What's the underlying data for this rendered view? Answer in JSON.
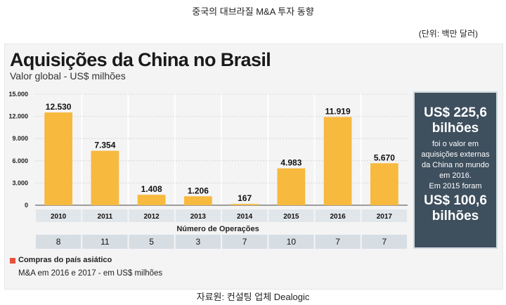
{
  "header": {
    "title": "중국의 대브라질 M&A 투자 동향",
    "unit": "(단위: 백만 달러)"
  },
  "chart_data": {
    "type": "bar",
    "title": "Aquisições da China no Brasil",
    "subtitle": "Valor global - US$ milhões",
    "categories": [
      "2010",
      "2011",
      "2012",
      "2013",
      "2014",
      "2015",
      "2016",
      "2017"
    ],
    "values": [
      12530,
      7354,
      1408,
      1206,
      167,
      4983,
      11919,
      5670
    ],
    "value_labels": [
      "12.530",
      "7.354",
      "1.408",
      "1.206",
      "167",
      "4.983",
      "11.919",
      "5.670"
    ],
    "ylim": [
      0,
      15000
    ],
    "yticks": [
      0,
      3000,
      6000,
      9000,
      12000,
      15000
    ],
    "ytick_labels": [
      "0",
      "3.000",
      "6.000",
      "9.000",
      "12.000",
      "15.000"
    ],
    "bar_color": "#f7b93e",
    "grid": true,
    "operations_label": "Número de Operações",
    "operations": [
      "8",
      "11",
      "5",
      "3",
      "7",
      "10",
      "7",
      "7"
    ]
  },
  "side_box": {
    "line1": "US$ 225,6",
    "line2": "bilhões",
    "line3": "foi o valor em",
    "line4": "aquisições externas",
    "line5": "da China no mundo",
    "line6": "em 2016.",
    "line7": "Em 2015 foram",
    "line8": "US$ 100,6",
    "line9": "bilhões",
    "bg_color": "#3e4f5e"
  },
  "legend": {
    "title": "Compras do país asiático",
    "subtitle": "M&A em 2016 e 2017 - em US$ milhões",
    "color": "#e8503a"
  },
  "source": "자료원: 컨설팅 업체 Dealogic"
}
